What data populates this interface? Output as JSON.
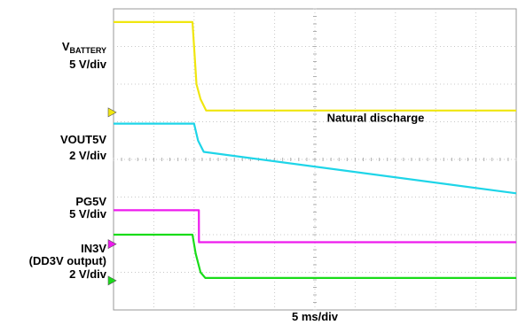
{
  "chart_data": {
    "type": "line",
    "title": "",
    "xlabel": "5 ms/div",
    "ylabel": "",
    "x_unit": "ms",
    "x_per_div_ms": 5,
    "x_divisions": 10,
    "y_divisions": 8,
    "xlim": [
      0,
      50
    ],
    "ylim_div": [
      0,
      8
    ],
    "grid": true,
    "annotations": [
      {
        "text": "Natural discharge",
        "target": "VOUT5V",
        "x_ms": 26.5,
        "y_div": 5.0
      }
    ],
    "series": [
      {
        "name": "VBATTERY",
        "label_main": "V",
        "label_sub": "BATTERY",
        "scale": "5 V/div",
        "color": "#f0e60f",
        "ground_div": 5.25,
        "x": [
          0,
          9.8,
          10.0,
          10.3,
          10.8,
          11.5,
          50
        ],
        "y": [
          7.65,
          7.65,
          7.0,
          6.0,
          5.6,
          5.3,
          5.3
        ]
      },
      {
        "name": "VOUT5V",
        "label_main": "VOUT5V",
        "scale": "2 V/div",
        "color": "#1ed5e8",
        "ground_div": null,
        "x": [
          0,
          10.0,
          10.5,
          11.2,
          50
        ],
        "y": [
          4.95,
          4.95,
          4.5,
          4.2,
          3.1
        ]
      },
      {
        "name": "PG5V",
        "label_main": "PG5V",
        "scale": "5 V/div",
        "color": "#ee1aee",
        "ground_div": 1.75,
        "x": [
          0,
          10.6,
          10.61,
          50
        ],
        "y": [
          2.65,
          2.65,
          1.8,
          1.8
        ]
      },
      {
        "name": "IN3V",
        "label_main": "IN3V",
        "label_extra": "(DD3V output)",
        "scale": "2 V/div",
        "color": "#19dc19",
        "ground_div": 0.78,
        "x": [
          0,
          9.8,
          10.2,
          10.8,
          11.4,
          50
        ],
        "y": [
          2.0,
          2.0,
          1.5,
          1.0,
          0.85,
          0.85
        ]
      }
    ]
  }
}
